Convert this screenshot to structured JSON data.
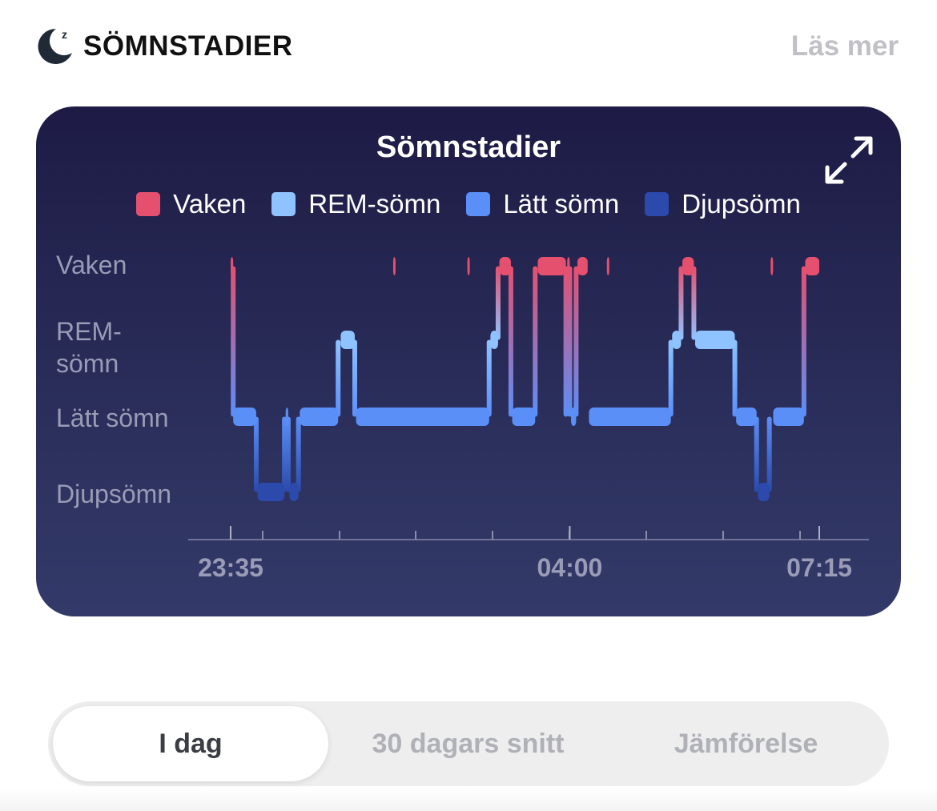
{
  "header": {
    "title": "SÖMNSTADIER",
    "read_more": "Läs mer",
    "icon": "moon-zz-icon"
  },
  "card": {
    "title": "Sömnstadier",
    "expand_icon": "expand-arrows-icon"
  },
  "legend": [
    {
      "label": "Vaken",
      "color": "#e6506f"
    },
    {
      "label": "REM-sömn",
      "color": "#8fc3ff"
    },
    {
      "label": "Lätt sömn",
      "color": "#5b8ff8"
    },
    {
      "label": "Djupsömn",
      "color": "#2b4aab"
    }
  ],
  "chart_data": {
    "type": "area",
    "title": "Sömnstadier",
    "y_categories": [
      "Vaken",
      "REM-sömn",
      "Lätt sömn",
      "Djupsömn"
    ],
    "x_tick_labels": [
      "23:35",
      "04:00",
      "07:15"
    ],
    "x_range": [
      "23:35",
      "07:15"
    ],
    "series": [
      {
        "name": "Vaken",
        "color": "#e6506f",
        "intervals": [
          [
            "23:35",
            "23:37"
          ],
          [
            "01:42",
            "01:43"
          ],
          [
            "02:40",
            "02:41"
          ],
          [
            "03:05",
            "03:14"
          ],
          [
            "03:35",
            "03:57"
          ],
          [
            "03:58",
            "04:00"
          ],
          [
            "04:06",
            "04:14"
          ],
          [
            "04:29",
            "04:30"
          ],
          [
            "05:28",
            "05:37"
          ],
          [
            "06:37",
            "06:38"
          ],
          [
            "07:04",
            "07:15"
          ]
        ]
      },
      {
        "name": "REM-sömn",
        "color": "#8fc3ff",
        "intervals": [
          [
            "01:01",
            "01:12"
          ],
          [
            "02:58",
            "03:04"
          ],
          [
            "05:20",
            "05:27"
          ],
          [
            "05:38",
            "06:09"
          ]
        ]
      },
      {
        "name": "Lätt sömn",
        "color": "#5b8ff8",
        "intervals": [
          [
            "23:37",
            "23:55"
          ],
          [
            "00:18",
            "00:20"
          ],
          [
            "00:29",
            "00:59"
          ],
          [
            "01:13",
            "02:57"
          ],
          [
            "03:15",
            "03:33"
          ],
          [
            "04:01",
            "04:05"
          ],
          [
            "04:15",
            "05:19"
          ],
          [
            "06:10",
            "06:26"
          ],
          [
            "06:39",
            "07:03"
          ]
        ]
      },
      {
        "name": "Djupsömn",
        "color": "#2b4aab",
        "intervals": [
          [
            "23:56",
            "00:17"
          ],
          [
            "00:21",
            "00:28"
          ],
          [
            "06:27",
            "06:36"
          ]
        ]
      }
    ],
    "x": [
      "23:35",
      "23:37",
      "23:55",
      "00:17",
      "00:20",
      "00:28",
      "00:59",
      "01:12",
      "02:57",
      "03:04",
      "03:14",
      "03:33",
      "03:57",
      "04:00",
      "04:05",
      "04:14",
      "05:19",
      "05:27",
      "05:37",
      "06:09",
      "06:26",
      "06:36",
      "07:03",
      "07:15"
    ],
    "stage": [
      "Vaken",
      "Lätt sömn",
      "Djupsömn",
      "Lätt sömn",
      "Djupsömn",
      "Lätt sömn",
      "REM-sömn",
      "Lätt sömn",
      "REM-sömn",
      "Vaken",
      "Lätt sömn",
      "Vaken",
      "Lätt sömn",
      "Vaken",
      "Lätt sömn",
      "Lätt sömn",
      "REM-sömn",
      "Vaken",
      "REM-sömn",
      "Lätt sömn",
      "Djupsömn",
      "Lätt sömn",
      "Vaken",
      "Vaken"
    ],
    "grid": false,
    "legend_position": "top-center"
  },
  "segmented": {
    "options": [
      "I dag",
      "30 dagars snitt",
      "Jämförelse"
    ],
    "selected": "I dag"
  },
  "colors": {
    "card_bg_top": "#1d1b45",
    "card_bg_bottom": "#333a69",
    "axis_text": "#9a9bb6"
  }
}
